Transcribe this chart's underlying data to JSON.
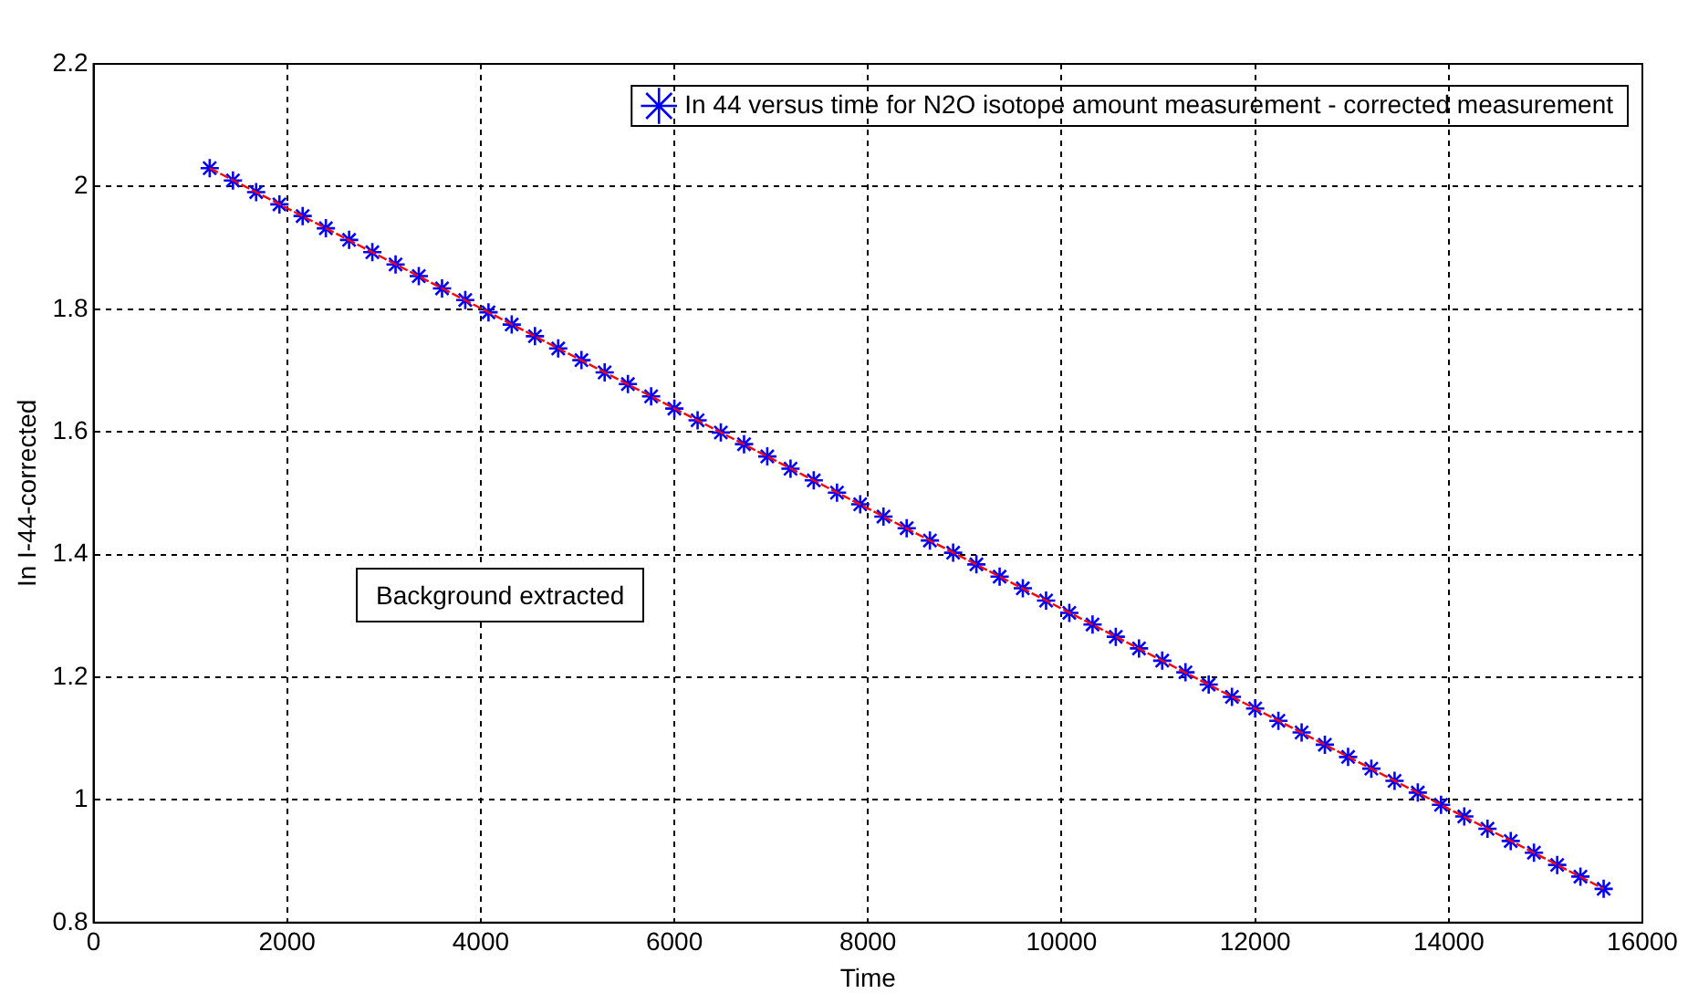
{
  "chart_data": {
    "type": "scatter",
    "xlabel": "Time",
    "ylabel": "In I-44-corrected",
    "annotations": [
      "Background extracted"
    ],
    "xlim": [
      0,
      16000
    ],
    "xticks": [
      0,
      2000,
      4000,
      6000,
      8000,
      10000,
      12000,
      14000,
      16000
    ],
    "ylim": [
      0.8,
      2.2
    ],
    "yticks": [
      0.8,
      1,
      1.2,
      1.4,
      1.6,
      1.8,
      2,
      2.2
    ],
    "grid": true,
    "legend": "top right",
    "marker": "cross",
    "series": [
      {
        "name": "In 44 versus time for N2O isotope amount measurement - corrected measurement",
        "color": "#0000ff",
        "x": [
          1200,
          1440,
          1680,
          1920,
          2160,
          2400,
          2640,
          2880,
          3120,
          3360,
          3600,
          3840,
          4080,
          4320,
          4560,
          4800,
          5040,
          5280,
          5520,
          5760,
          6000,
          6240,
          6480,
          6720,
          6960,
          7200,
          7440,
          7680,
          7920,
          8160,
          8400,
          8640,
          8880,
          9120,
          9360,
          9600,
          9840,
          10080,
          10320,
          10560,
          10800,
          11040,
          11280,
          11520,
          11760,
          12000,
          12240,
          12480,
          12720,
          12960,
          13200,
          13440,
          13680,
          13920,
          14160,
          14400,
          14640,
          14880,
          15120,
          15360,
          15600
        ],
        "values": [
          2.03,
          2.01,
          1.991,
          1.971,
          1.952,
          1.932,
          1.913,
          1.893,
          1.873,
          1.854,
          1.834,
          1.815,
          1.795,
          1.775,
          1.756,
          1.736,
          1.717,
          1.697,
          1.678,
          1.658,
          1.638,
          1.619,
          1.599,
          1.58,
          1.56,
          1.54,
          1.521,
          1.501,
          1.482,
          1.462,
          1.443,
          1.423,
          1.403,
          1.384,
          1.364,
          1.345,
          1.325,
          1.305,
          1.286,
          1.266,
          1.247,
          1.227,
          1.208,
          1.188,
          1.168,
          1.149,
          1.129,
          1.11,
          1.09,
          1.07,
          1.051,
          1.031,
          1.012,
          0.992,
          0.973,
          0.953,
          0.933,
          0.914,
          0.894,
          0.875,
          0.855
        ]
      },
      {
        "color": "#ff0000",
        "type": "line",
        "line_style": "dashed",
        "marker": "none",
        "x": [
          1200,
          15600
        ],
        "values": [
          2.03,
          0.855
        ]
      }
    ]
  }
}
